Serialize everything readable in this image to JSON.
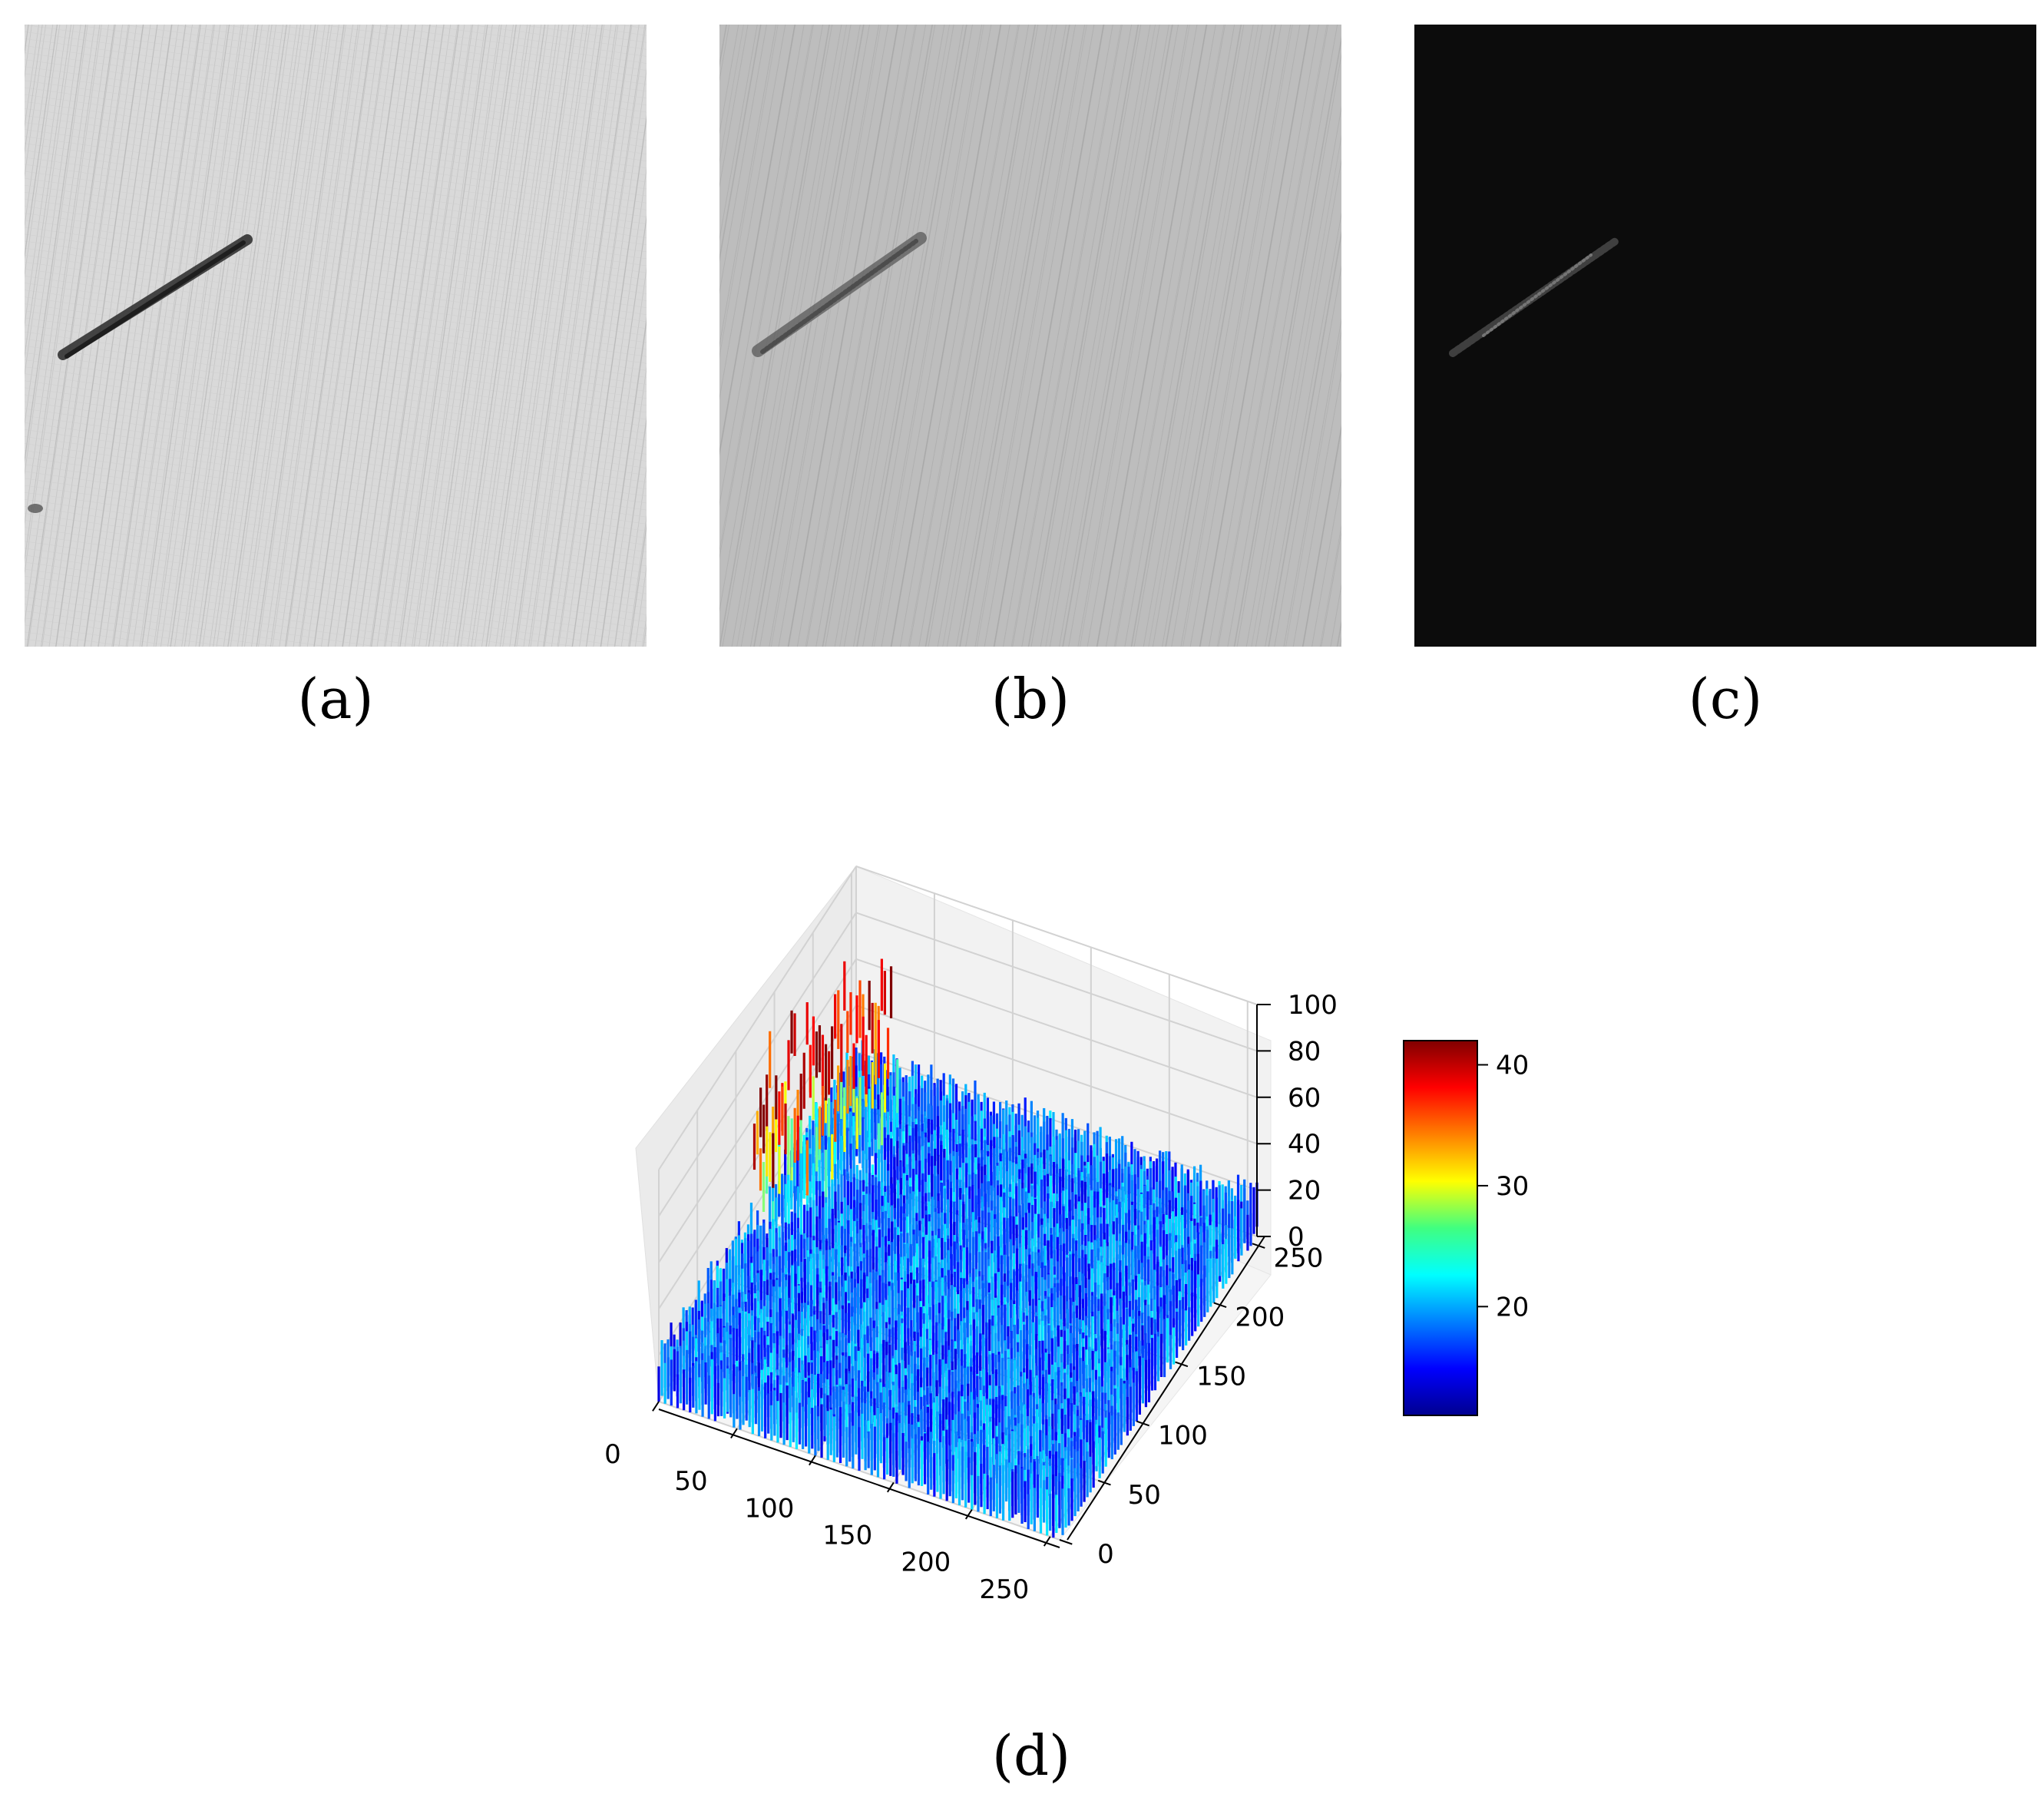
{
  "panels": [
    {
      "id": "a",
      "label": "(a)"
    },
    {
      "id": "b",
      "label": "(b)"
    },
    {
      "id": "c",
      "label": "(c)"
    },
    {
      "id": "d",
      "label": "(d)"
    }
  ],
  "chart_data": {
    "type": "surface3d",
    "x_ticks": [
      "0",
      "50",
      "100",
      "150",
      "200",
      "250"
    ],
    "y_ticks": [
      "0",
      "50",
      "100",
      "150",
      "200",
      "250"
    ],
    "z_ticks": [
      "0",
      "20",
      "40",
      "60",
      "80",
      "100"
    ],
    "zlim": [
      0,
      100
    ],
    "colorbar": {
      "colormap": "jet",
      "ticks": [
        "20",
        "30",
        "40"
      ],
      "range": [
        11,
        42
      ]
    },
    "colors": {
      "low": "#0b3cff",
      "mid": "#1a66ff",
      "peak_edge": "#b6ff2a",
      "peak_core": "#c40000"
    }
  }
}
